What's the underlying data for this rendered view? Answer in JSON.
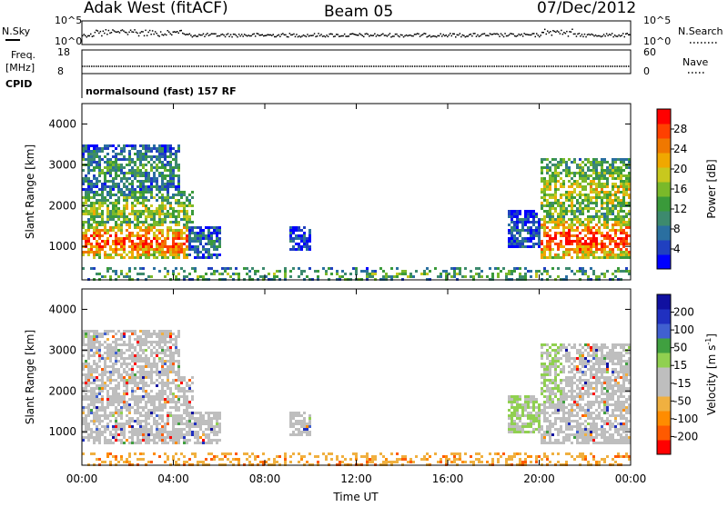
{
  "header": {
    "station": "Adak West (fitACF)",
    "beam": "Beam 05",
    "date": "07/Dec/2012"
  },
  "chart_data": [
    {
      "type": "line",
      "name": "sky-noise-panel",
      "left_label": "N.Sky",
      "right_label": "N.Search",
      "left_ticks": [
        "10^5",
        "10^0"
      ],
      "right_ticks": [
        "10^5",
        "10^0"
      ],
      "yscale": "log",
      "ylim": [
        1,
        100000
      ],
      "note": ""
    },
    {
      "type": "line",
      "name": "frequency-panel",
      "left_label_top": "Freq.",
      "left_label_bottom": "[MHz]",
      "right_label": "Nave",
      "left_ticks": [
        "18",
        "8"
      ],
      "right_ticks": [
        "60",
        "0"
      ],
      "ylim": [
        8,
        18
      ]
    },
    {
      "type": "table",
      "name": "cpid-panel",
      "label": "CPID",
      "text": "normalsound (fast) 157 RF"
    },
    {
      "type": "heatmap",
      "name": "power-panel",
      "ylabel": "Slant Range [km]",
      "yticks": [
        "1000",
        "2000",
        "3000",
        "4000"
      ],
      "ylim": [
        180,
        4500
      ],
      "xlim_hours": [
        0,
        24
      ],
      "colorbar": {
        "label": "Power [dB]",
        "ticks": [
          "4",
          "8",
          "12",
          "16",
          "20",
          "24",
          "28"
        ],
        "range": [
          0,
          30
        ],
        "colors": [
          "#0000ff",
          "#2040c0",
          "#2a6fa0",
          "#3d8a6e",
          "#3a9a3a",
          "#7ab92a",
          "#c8c81e",
          "#f0a800",
          "#f07800",
          "#ff4000",
          "#ff0000"
        ]
      },
      "regions": [
        {
          "t": [
            0.0,
            4.6
          ],
          "r": [
            700,
            1600
          ],
          "level": 0.9
        },
        {
          "t": [
            0.0,
            4.8
          ],
          "r": [
            1500,
            2400
          ],
          "level": 0.55
        },
        {
          "t": [
            0.0,
            4.2
          ],
          "r": [
            2400,
            3500
          ],
          "level": 0.35
        },
        {
          "t": [
            4.2,
            6.0
          ],
          "r": [
            700,
            1500
          ],
          "level": 0.25
        },
        {
          "t": [
            9.0,
            10.0
          ],
          "r": [
            900,
            1500
          ],
          "level": 0.15
        },
        {
          "t": [
            0.0,
            24.0
          ],
          "r": [
            180,
            500
          ],
          "level": 0.45
        },
        {
          "t": [
            18.6,
            20.0
          ],
          "r": [
            1000,
            1900
          ],
          "level": 0.2
        },
        {
          "t": [
            20.0,
            24.0
          ],
          "r": [
            700,
            1700
          ],
          "level": 0.95
        },
        {
          "t": [
            20.0,
            24.0
          ],
          "r": [
            1600,
            3200
          ],
          "level": 0.6
        }
      ]
    },
    {
      "type": "heatmap",
      "name": "velocity-panel",
      "ylabel": "Slant Range [km]",
      "yticks": [
        "1000",
        "2000",
        "3000",
        "4000"
      ],
      "ylim": [
        180,
        4500
      ],
      "xlim_hours": [
        0,
        24
      ],
      "xticks": [
        "00:00",
        "04:00",
        "08:00",
        "12:00",
        "16:00",
        "20:00",
        "00:00"
      ],
      "xlabel": "Time UT",
      "colorbar": {
        "label": "Velocity [m s",
        "label_sup": "-1",
        "label_end": "]",
        "ticks": [
          "-200",
          "-100",
          "-50",
          "-15",
          "15",
          "50",
          "100",
          "200"
        ],
        "colors": [
          "#ff0000",
          "#ff5a00",
          "#ff8c00",
          "#f0b040",
          "#bebebe",
          "#bebebe",
          "#90d050",
          "#40a040",
          "#4060d0",
          "#2030c0",
          "#1010a0"
        ]
      }
    }
  ]
}
